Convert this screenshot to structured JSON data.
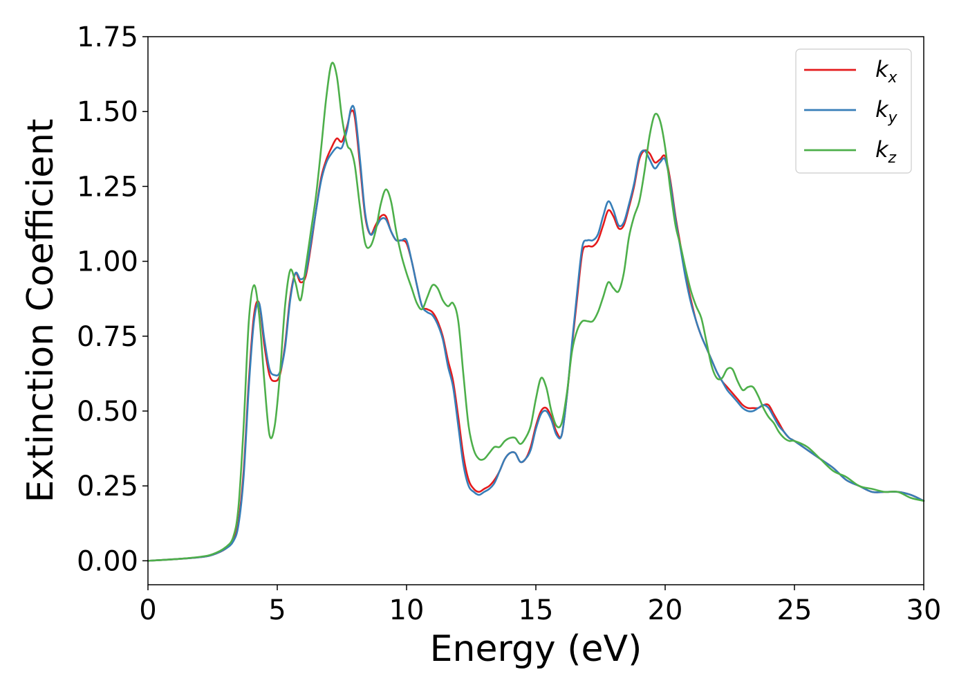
{
  "chart_data": {
    "type": "line",
    "xlabel": "Energy (eV)",
    "ylabel": "Extinction Coefficient",
    "xlim": [
      0,
      30
    ],
    "ylim": [
      -0.08,
      1.75
    ],
    "xticks": [
      0,
      5,
      10,
      15,
      20,
      25,
      30
    ],
    "xtick_labels": [
      "0",
      "5",
      "10",
      "15",
      "20",
      "25",
      "30"
    ],
    "yticks": [
      0.0,
      0.25,
      0.5,
      0.75,
      1.0,
      1.25,
      1.5,
      1.75
    ],
    "ytick_labels": [
      "0.00",
      "0.25",
      "0.50",
      "0.75",
      "1.00",
      "1.25",
      "1.50",
      "1.75"
    ],
    "grid": false,
    "legend_position": "top-right",
    "series": [
      {
        "name": "k_x",
        "label_base": "k",
        "label_sub": "x",
        "color": "#e41a1c",
        "x": [
          0,
          1,
          2,
          2.5,
          3,
          3.3,
          3.5,
          3.7,
          3.9,
          4.1,
          4.3,
          4.5,
          4.7,
          4.9,
          5.1,
          5.3,
          5.5,
          5.7,
          5.9,
          6.1,
          6.3,
          6.5,
          6.7,
          6.9,
          7.1,
          7.3,
          7.5,
          7.7,
          7.85,
          8.0,
          8.2,
          8.4,
          8.6,
          8.8,
          9.0,
          9.2,
          9.4,
          9.6,
          9.8,
          10.0,
          10.2,
          10.4,
          10.6,
          10.8,
          11.0,
          11.2,
          11.4,
          11.6,
          11.8,
          12.0,
          12.2,
          12.4,
          12.6,
          12.8,
          13.0,
          13.2,
          13.4,
          13.6,
          13.8,
          14.0,
          14.2,
          14.4,
          14.6,
          14.8,
          15.0,
          15.2,
          15.4,
          15.6,
          15.8,
          16.0,
          16.2,
          16.4,
          16.6,
          16.8,
          17.0,
          17.2,
          17.4,
          17.6,
          17.8,
          18.0,
          18.2,
          18.4,
          18.6,
          18.8,
          19.0,
          19.2,
          19.4,
          19.6,
          19.8,
          20.0,
          20.2,
          20.4,
          20.6,
          20.8,
          21.0,
          21.2,
          21.4,
          21.6,
          21.8,
          22.0,
          22.2,
          22.4,
          22.6,
          22.8,
          23.0,
          23.2,
          23.4,
          23.6,
          23.8,
          24.0,
          24.2,
          24.4,
          24.6,
          24.8,
          25.0,
          25.5,
          26.0,
          26.5,
          27.0,
          27.5,
          28.0,
          28.5,
          29.0,
          29.5,
          30.0
        ],
        "values": [
          0.0,
          0.005,
          0.012,
          0.02,
          0.04,
          0.07,
          0.13,
          0.3,
          0.6,
          0.82,
          0.86,
          0.72,
          0.62,
          0.6,
          0.62,
          0.72,
          0.88,
          0.96,
          0.93,
          0.95,
          1.05,
          1.17,
          1.28,
          1.34,
          1.38,
          1.41,
          1.4,
          1.45,
          1.5,
          1.48,
          1.32,
          1.15,
          1.09,
          1.12,
          1.15,
          1.15,
          1.1,
          1.07,
          1.07,
          1.06,
          1.0,
          0.92,
          0.85,
          0.84,
          0.83,
          0.8,
          0.75,
          0.67,
          0.6,
          0.48,
          0.35,
          0.27,
          0.24,
          0.23,
          0.24,
          0.25,
          0.27,
          0.3,
          0.34,
          0.36,
          0.36,
          0.33,
          0.34,
          0.38,
          0.45,
          0.5,
          0.51,
          0.48,
          0.43,
          0.42,
          0.55,
          0.72,
          0.88,
          1.03,
          1.05,
          1.05,
          1.07,
          1.12,
          1.17,
          1.15,
          1.11,
          1.12,
          1.18,
          1.25,
          1.34,
          1.37,
          1.36,
          1.33,
          1.34,
          1.35,
          1.27,
          1.15,
          1.05,
          0.95,
          0.87,
          0.8,
          0.75,
          0.71,
          0.67,
          0.63,
          0.6,
          0.58,
          0.56,
          0.54,
          0.52,
          0.51,
          0.51,
          0.51,
          0.52,
          0.52,
          0.49,
          0.46,
          0.43,
          0.41,
          0.4,
          0.37,
          0.34,
          0.31,
          0.27,
          0.25,
          0.23,
          0.23,
          0.23,
          0.22,
          0.2
        ]
      },
      {
        "name": "k_y",
        "label_base": "k",
        "label_sub": "y",
        "color": "#377eb8",
        "x": [
          0,
          1,
          2,
          2.5,
          3,
          3.3,
          3.5,
          3.7,
          3.9,
          4.1,
          4.3,
          4.5,
          4.7,
          4.9,
          5.1,
          5.3,
          5.5,
          5.7,
          5.9,
          6.1,
          6.3,
          6.5,
          6.7,
          6.9,
          7.1,
          7.3,
          7.5,
          7.7,
          7.85,
          8.0,
          8.2,
          8.4,
          8.6,
          8.8,
          9.0,
          9.2,
          9.4,
          9.6,
          9.8,
          10.0,
          10.2,
          10.4,
          10.6,
          10.8,
          11.0,
          11.2,
          11.4,
          11.6,
          11.8,
          12.0,
          12.2,
          12.4,
          12.6,
          12.8,
          13.0,
          13.2,
          13.4,
          13.6,
          13.8,
          14.0,
          14.2,
          14.4,
          14.6,
          14.8,
          15.0,
          15.2,
          15.4,
          15.6,
          15.8,
          16.0,
          16.2,
          16.4,
          16.6,
          16.8,
          17.0,
          17.2,
          17.4,
          17.6,
          17.8,
          18.0,
          18.2,
          18.4,
          18.6,
          18.8,
          19.0,
          19.2,
          19.4,
          19.6,
          19.8,
          20.0,
          20.2,
          20.4,
          20.6,
          20.8,
          21.0,
          21.2,
          21.4,
          21.6,
          21.8,
          22.0,
          22.2,
          22.4,
          22.6,
          22.8,
          23.0,
          23.2,
          23.4,
          23.6,
          23.8,
          24.0,
          24.2,
          24.4,
          24.6,
          24.8,
          25.0,
          25.5,
          26.0,
          26.5,
          27.0,
          27.5,
          28.0,
          28.5,
          29.0,
          29.5,
          30.0
        ],
        "values": [
          0.0,
          0.005,
          0.012,
          0.02,
          0.04,
          0.065,
          0.12,
          0.28,
          0.58,
          0.8,
          0.86,
          0.74,
          0.64,
          0.62,
          0.63,
          0.71,
          0.87,
          0.96,
          0.94,
          0.96,
          1.06,
          1.17,
          1.27,
          1.33,
          1.36,
          1.38,
          1.38,
          1.44,
          1.51,
          1.5,
          1.34,
          1.16,
          1.09,
          1.11,
          1.14,
          1.14,
          1.1,
          1.07,
          1.07,
          1.07,
          1.0,
          0.92,
          0.85,
          0.83,
          0.82,
          0.79,
          0.74,
          0.65,
          0.58,
          0.45,
          0.32,
          0.25,
          0.23,
          0.22,
          0.23,
          0.24,
          0.26,
          0.3,
          0.34,
          0.36,
          0.36,
          0.33,
          0.34,
          0.37,
          0.44,
          0.49,
          0.5,
          0.47,
          0.42,
          0.42,
          0.55,
          0.73,
          0.9,
          1.05,
          1.07,
          1.07,
          1.09,
          1.15,
          1.2,
          1.17,
          1.12,
          1.13,
          1.19,
          1.26,
          1.35,
          1.37,
          1.34,
          1.31,
          1.33,
          1.34,
          1.26,
          1.14,
          1.04,
          0.94,
          0.86,
          0.8,
          0.75,
          0.71,
          0.67,
          0.63,
          0.6,
          0.57,
          0.55,
          0.53,
          0.51,
          0.5,
          0.5,
          0.51,
          0.52,
          0.51,
          0.48,
          0.45,
          0.43,
          0.41,
          0.4,
          0.37,
          0.34,
          0.31,
          0.27,
          0.25,
          0.23,
          0.23,
          0.23,
          0.22,
          0.2
        ]
      },
      {
        "name": "k_z",
        "label_base": "k",
        "label_sub": "z",
        "color": "#4daf4a",
        "x": [
          0,
          1,
          2,
          2.5,
          3,
          3.3,
          3.5,
          3.7,
          3.9,
          4.1,
          4.3,
          4.5,
          4.7,
          4.9,
          5.1,
          5.3,
          5.5,
          5.7,
          5.9,
          6.1,
          6.3,
          6.5,
          6.7,
          6.9,
          7.1,
          7.3,
          7.5,
          7.7,
          7.85,
          8.0,
          8.2,
          8.4,
          8.6,
          8.8,
          9.0,
          9.2,
          9.4,
          9.6,
          9.8,
          10.0,
          10.2,
          10.4,
          10.6,
          10.8,
          11.0,
          11.2,
          11.4,
          11.6,
          11.8,
          12.0,
          12.2,
          12.4,
          12.6,
          12.8,
          13.0,
          13.2,
          13.4,
          13.6,
          13.8,
          14.0,
          14.2,
          14.4,
          14.6,
          14.8,
          15.0,
          15.2,
          15.4,
          15.6,
          15.8,
          16.0,
          16.2,
          16.4,
          16.6,
          16.8,
          17.0,
          17.2,
          17.4,
          17.6,
          17.8,
          18.0,
          18.2,
          18.4,
          18.6,
          18.8,
          19.0,
          19.2,
          19.4,
          19.6,
          19.8,
          20.0,
          20.2,
          20.4,
          20.6,
          20.8,
          21.0,
          21.2,
          21.4,
          21.6,
          21.8,
          22.0,
          22.2,
          22.4,
          22.6,
          22.8,
          23.0,
          23.2,
          23.4,
          23.6,
          23.8,
          24.0,
          24.2,
          24.4,
          24.6,
          24.8,
          25.0,
          25.5,
          26.0,
          26.5,
          27.0,
          27.5,
          28.0,
          28.5,
          29.0,
          29.5,
          30.0
        ],
        "values": [
          0.0,
          0.005,
          0.013,
          0.022,
          0.045,
          0.08,
          0.18,
          0.45,
          0.8,
          0.92,
          0.82,
          0.6,
          0.42,
          0.45,
          0.62,
          0.85,
          0.97,
          0.93,
          0.87,
          0.98,
          1.1,
          1.22,
          1.38,
          1.55,
          1.66,
          1.62,
          1.48,
          1.39,
          1.37,
          1.32,
          1.18,
          1.06,
          1.05,
          1.1,
          1.19,
          1.24,
          1.2,
          1.1,
          1.02,
          0.96,
          0.91,
          0.86,
          0.84,
          0.88,
          0.92,
          0.91,
          0.87,
          0.85,
          0.86,
          0.8,
          0.62,
          0.45,
          0.37,
          0.34,
          0.34,
          0.36,
          0.38,
          0.38,
          0.4,
          0.41,
          0.41,
          0.39,
          0.41,
          0.45,
          0.54,
          0.61,
          0.58,
          0.5,
          0.45,
          0.46,
          0.56,
          0.7,
          0.77,
          0.8,
          0.8,
          0.8,
          0.83,
          0.88,
          0.93,
          0.91,
          0.9,
          0.96,
          1.08,
          1.15,
          1.2,
          1.3,
          1.42,
          1.49,
          1.47,
          1.38,
          1.24,
          1.12,
          1.05,
          0.97,
          0.9,
          0.85,
          0.81,
          0.73,
          0.65,
          0.61,
          0.61,
          0.64,
          0.64,
          0.6,
          0.57,
          0.58,
          0.58,
          0.55,
          0.51,
          0.48,
          0.46,
          0.43,
          0.41,
          0.4,
          0.4,
          0.38,
          0.34,
          0.3,
          0.28,
          0.25,
          0.24,
          0.23,
          0.23,
          0.21,
          0.2
        ]
      }
    ]
  }
}
